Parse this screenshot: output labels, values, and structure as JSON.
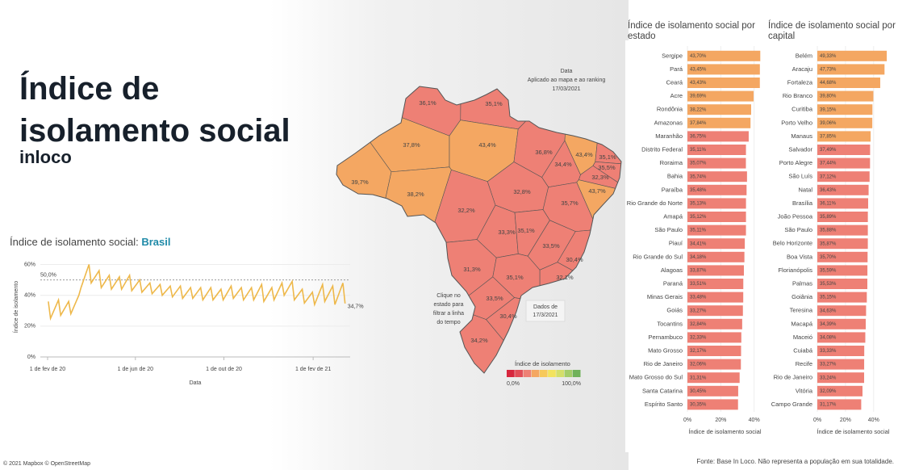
{
  "title": "Índice de isolamento social",
  "subtitle": "inloco",
  "footer": "Fonte: Base In Loco. Não representa a população em sua totalidade.",
  "attribution": "© 2021 Mapbox © OpenStreetMap",
  "chart_data": [
    {
      "type": "line",
      "title": "Índice de isolamento social:",
      "title_highlight": "Brasil",
      "x_label": "Data",
      "y_label": "Índice de isolamento",
      "color": "#eeb84a",
      "x": [
        "2020-02-02",
        "2020-02-05",
        "2020-02-16",
        "2020-02-19",
        "2020-03-01",
        "2020-03-04",
        "2020-03-15",
        "2020-03-18",
        "2020-03-29",
        "2020-04-01",
        "2020-04-12",
        "2020-04-15",
        "2020-04-26",
        "2020-04-29",
        "2020-05-10",
        "2020-05-13",
        "2020-05-24",
        "2020-05-27",
        "2020-06-07",
        "2020-06-10",
        "2020-06-21",
        "2020-06-24",
        "2020-07-05",
        "2020-07-08",
        "2020-07-19",
        "2020-07-22",
        "2020-08-02",
        "2020-08-05",
        "2020-08-16",
        "2020-08-19",
        "2020-08-30",
        "2020-09-02",
        "2020-09-13",
        "2020-09-16",
        "2020-09-27",
        "2020-09-30",
        "2020-10-11",
        "2020-10-14",
        "2020-10-25",
        "2020-10-28",
        "2020-11-08",
        "2020-11-11",
        "2020-11-22",
        "2020-11-25",
        "2020-12-06",
        "2020-12-09",
        "2020-12-20",
        "2020-12-23",
        "2021-01-03",
        "2021-01-06",
        "2021-01-17",
        "2021-01-20",
        "2021-01-31",
        "2021-02-03",
        "2021-02-14",
        "2021-02-17",
        "2021-02-28",
        "2021-03-03",
        "2021-03-14",
        "2021-03-17"
      ],
      "values": [
        36,
        25,
        37,
        27,
        36,
        28,
        40,
        45,
        60,
        48,
        56,
        45,
        53,
        44,
        52,
        44,
        53,
        43,
        50,
        42,
        48,
        41,
        47,
        40,
        46,
        39,
        46,
        38,
        45,
        38,
        45,
        37,
        45,
        37,
        44,
        37,
        46,
        38,
        45,
        37,
        45,
        37,
        47,
        36,
        45,
        37,
        48,
        40,
        49,
        37,
        44,
        35,
        42,
        34,
        47,
        36,
        46,
        34,
        48,
        34.7
      ],
      "end_label": {
        "value": 34.7,
        "label": "34,7%"
      },
      "reference_line": {
        "value": 50,
        "label": "50,0%"
      },
      "xlim": [
        "2020-01-22",
        "2021-03-24"
      ],
      "xticks": [
        {
          "value": "2020-02-01",
          "label": "1 de fev de 20"
        },
        {
          "value": "2020-06-01",
          "label": "1 de jun de 20"
        },
        {
          "value": "2020-10-01",
          "label": "1 de out de 20"
        },
        {
          "value": "2021-02-01",
          "label": "1 de fev de 21"
        }
      ],
      "ylim": [
        0,
        65
      ],
      "yticks": [
        {
          "value": 0,
          "label": "0%"
        },
        {
          "value": 20,
          "label": "20%"
        },
        {
          "value": 40,
          "label": "40%"
        },
        {
          "value": 60,
          "label": "60%"
        }
      ],
      "grid": true
    },
    {
      "type": "choropleth",
      "annotations": [
        "Data",
        "Aplicado ao mapa e ao ranking",
        "17/03/2021"
      ],
      "click_hint": [
        "Clique no",
        "estado para",
        "filtrar a linha",
        "do tempo"
      ],
      "date_note": [
        "Dados de",
        "17/3/2021"
      ],
      "values": [
        36.1,
        35.1,
        37.8,
        43.4,
        36.8,
        43.4,
        35.1,
        35.5,
        32.3,
        34.4,
        43.7,
        39.7,
        38.2,
        32.2,
        32.8,
        35.7,
        33.3,
        35.1,
        33.5,
        31.3,
        30.4,
        32.1,
        35.1,
        33.5,
        30.4,
        34.2
      ],
      "value_labels": [
        "36,1%",
        "35,1%",
        "37,8%",
        "43,4%",
        "36,8%",
        "43,4%",
        "35,1%",
        "35,5%",
        "32,3%",
        "34,4%",
        "43,7%",
        "39,7%",
        "38,2%",
        "32,2%",
        "32,8%",
        "35,7%",
        "33,3%",
        "35,1%",
        "33,5%",
        "31,3%",
        "30,4%",
        "32,1%",
        "35,1%",
        "33,5%",
        "30,4%",
        "34,2%"
      ],
      "legend_title": "Índice de isolamento",
      "legend_ticks": [
        {
          "value": 0,
          "label": "0,0%"
        },
        {
          "value": 100,
          "label": "100,0%"
        }
      ],
      "colors": [
        "#d7263d",
        "#e24d57",
        "#ee8075",
        "#f4a762",
        "#f7c95a",
        "#f3e35e",
        "#d4df6a",
        "#a4cd69",
        "#70b25a"
      ]
    },
    {
      "type": "barh",
      "title": "Índice de isolamento social por estado",
      "x_label": "Índice de isolamento social",
      "categories": [
        "Sergipe",
        "Pará",
        "Ceará",
        "Acre",
        "Rondônia",
        "Amazonas",
        "Maranhão",
        "Distrito Federal",
        "Roraima",
        "Bahia",
        "Paraíba",
        "Rio Grande do Norte",
        "Amapá",
        "São Paulo",
        "Piauí",
        "Rio Grande do Sul",
        "Alagoas",
        "Paraná",
        "Minas Gerais",
        "Goiás",
        "Tocantins",
        "Pernambuco",
        "Mato Grosso",
        "Rio de Janeiro",
        "Mato Grosso do Sul",
        "Santa Catarina",
        "Espírito Santo"
      ],
      "values": [
        43.7,
        43.45,
        43.43,
        39.69,
        38.22,
        37.84,
        36.75,
        35.11,
        35.07,
        35.74,
        35.48,
        35.13,
        35.12,
        35.11,
        34.41,
        34.18,
        33.87,
        33.51,
        33.48,
        33.27,
        32.84,
        32.33,
        32.17,
        32.06,
        31.31,
        30.45,
        30.35
      ],
      "value_labels": [
        "43,70%",
        "43,45%",
        "43,43%",
        "39,69%",
        "38,22%",
        "37,84%",
        "36,75%",
        "35,11%",
        "35,07%",
        "35,74%",
        "35,48%",
        "35,13%",
        "35,12%",
        "35,11%",
        "34,41%",
        "34,18%",
        "33,87%",
        "33,51%",
        "33,48%",
        "33,27%",
        "32,84%",
        "32,33%",
        "32,17%",
        "32,06%",
        "31,31%",
        "30,45%",
        "30,35%"
      ],
      "xlim": [
        0,
        45
      ],
      "xticks": [
        {
          "value": 0,
          "label": "0%"
        },
        {
          "value": 20,
          "label": "20%"
        },
        {
          "value": 40,
          "label": "40%"
        }
      ]
    },
    {
      "type": "barh",
      "title": "Índice de isolamento social por capital",
      "x_label": "Índice de isolamento social",
      "categories": [
        "Belém",
        "Aracaju",
        "Fortaleza",
        "Rio Branco",
        "Curitiba",
        "Porto Velho",
        "Manaus",
        "Salvador",
        "Porto Alegre",
        "São Luís",
        "Natal",
        "Brasília",
        "João Pessoa",
        "São Paulo",
        "Belo Horizonte",
        "Boa Vista",
        "Florianópolis",
        "Palmas",
        "Goiânia",
        "Teresina",
        "Macapá",
        "Maceió",
        "Cuiabá",
        "Recife",
        "Rio de Janeiro",
        "Vitória",
        "Campo Grande"
      ],
      "values": [
        49.33,
        47.73,
        44.68,
        39.8,
        39.15,
        39.06,
        37.85,
        37.49,
        37.44,
        37.12,
        36.43,
        36.11,
        35.89,
        35.88,
        35.87,
        35.7,
        35.59,
        35.53,
        35.15,
        34.63,
        34.39,
        34.08,
        33.33,
        33.27,
        33.24,
        32.09,
        31.17
      ],
      "value_labels": [
        "49,33%",
        "47,73%",
        "44,68%",
        "39,80%",
        "39,15%",
        "39,06%",
        "37,85%",
        "37,49%",
        "37,44%",
        "37,12%",
        "36,43%",
        "36,11%",
        "35,89%",
        "35,88%",
        "35,87%",
        "35,70%",
        "35,59%",
        "35,53%",
        "35,15%",
        "34,63%",
        "34,39%",
        "34,08%",
        "33,33%",
        "33,27%",
        "33,24%",
        "32,09%",
        "31,17%"
      ],
      "xlim": [
        0,
        51
      ],
      "xticks": [
        {
          "value": 0,
          "label": "0%"
        },
        {
          "value": 20,
          "label": "20%"
        },
        {
          "value": 40,
          "label": "40%"
        }
      ]
    }
  ]
}
